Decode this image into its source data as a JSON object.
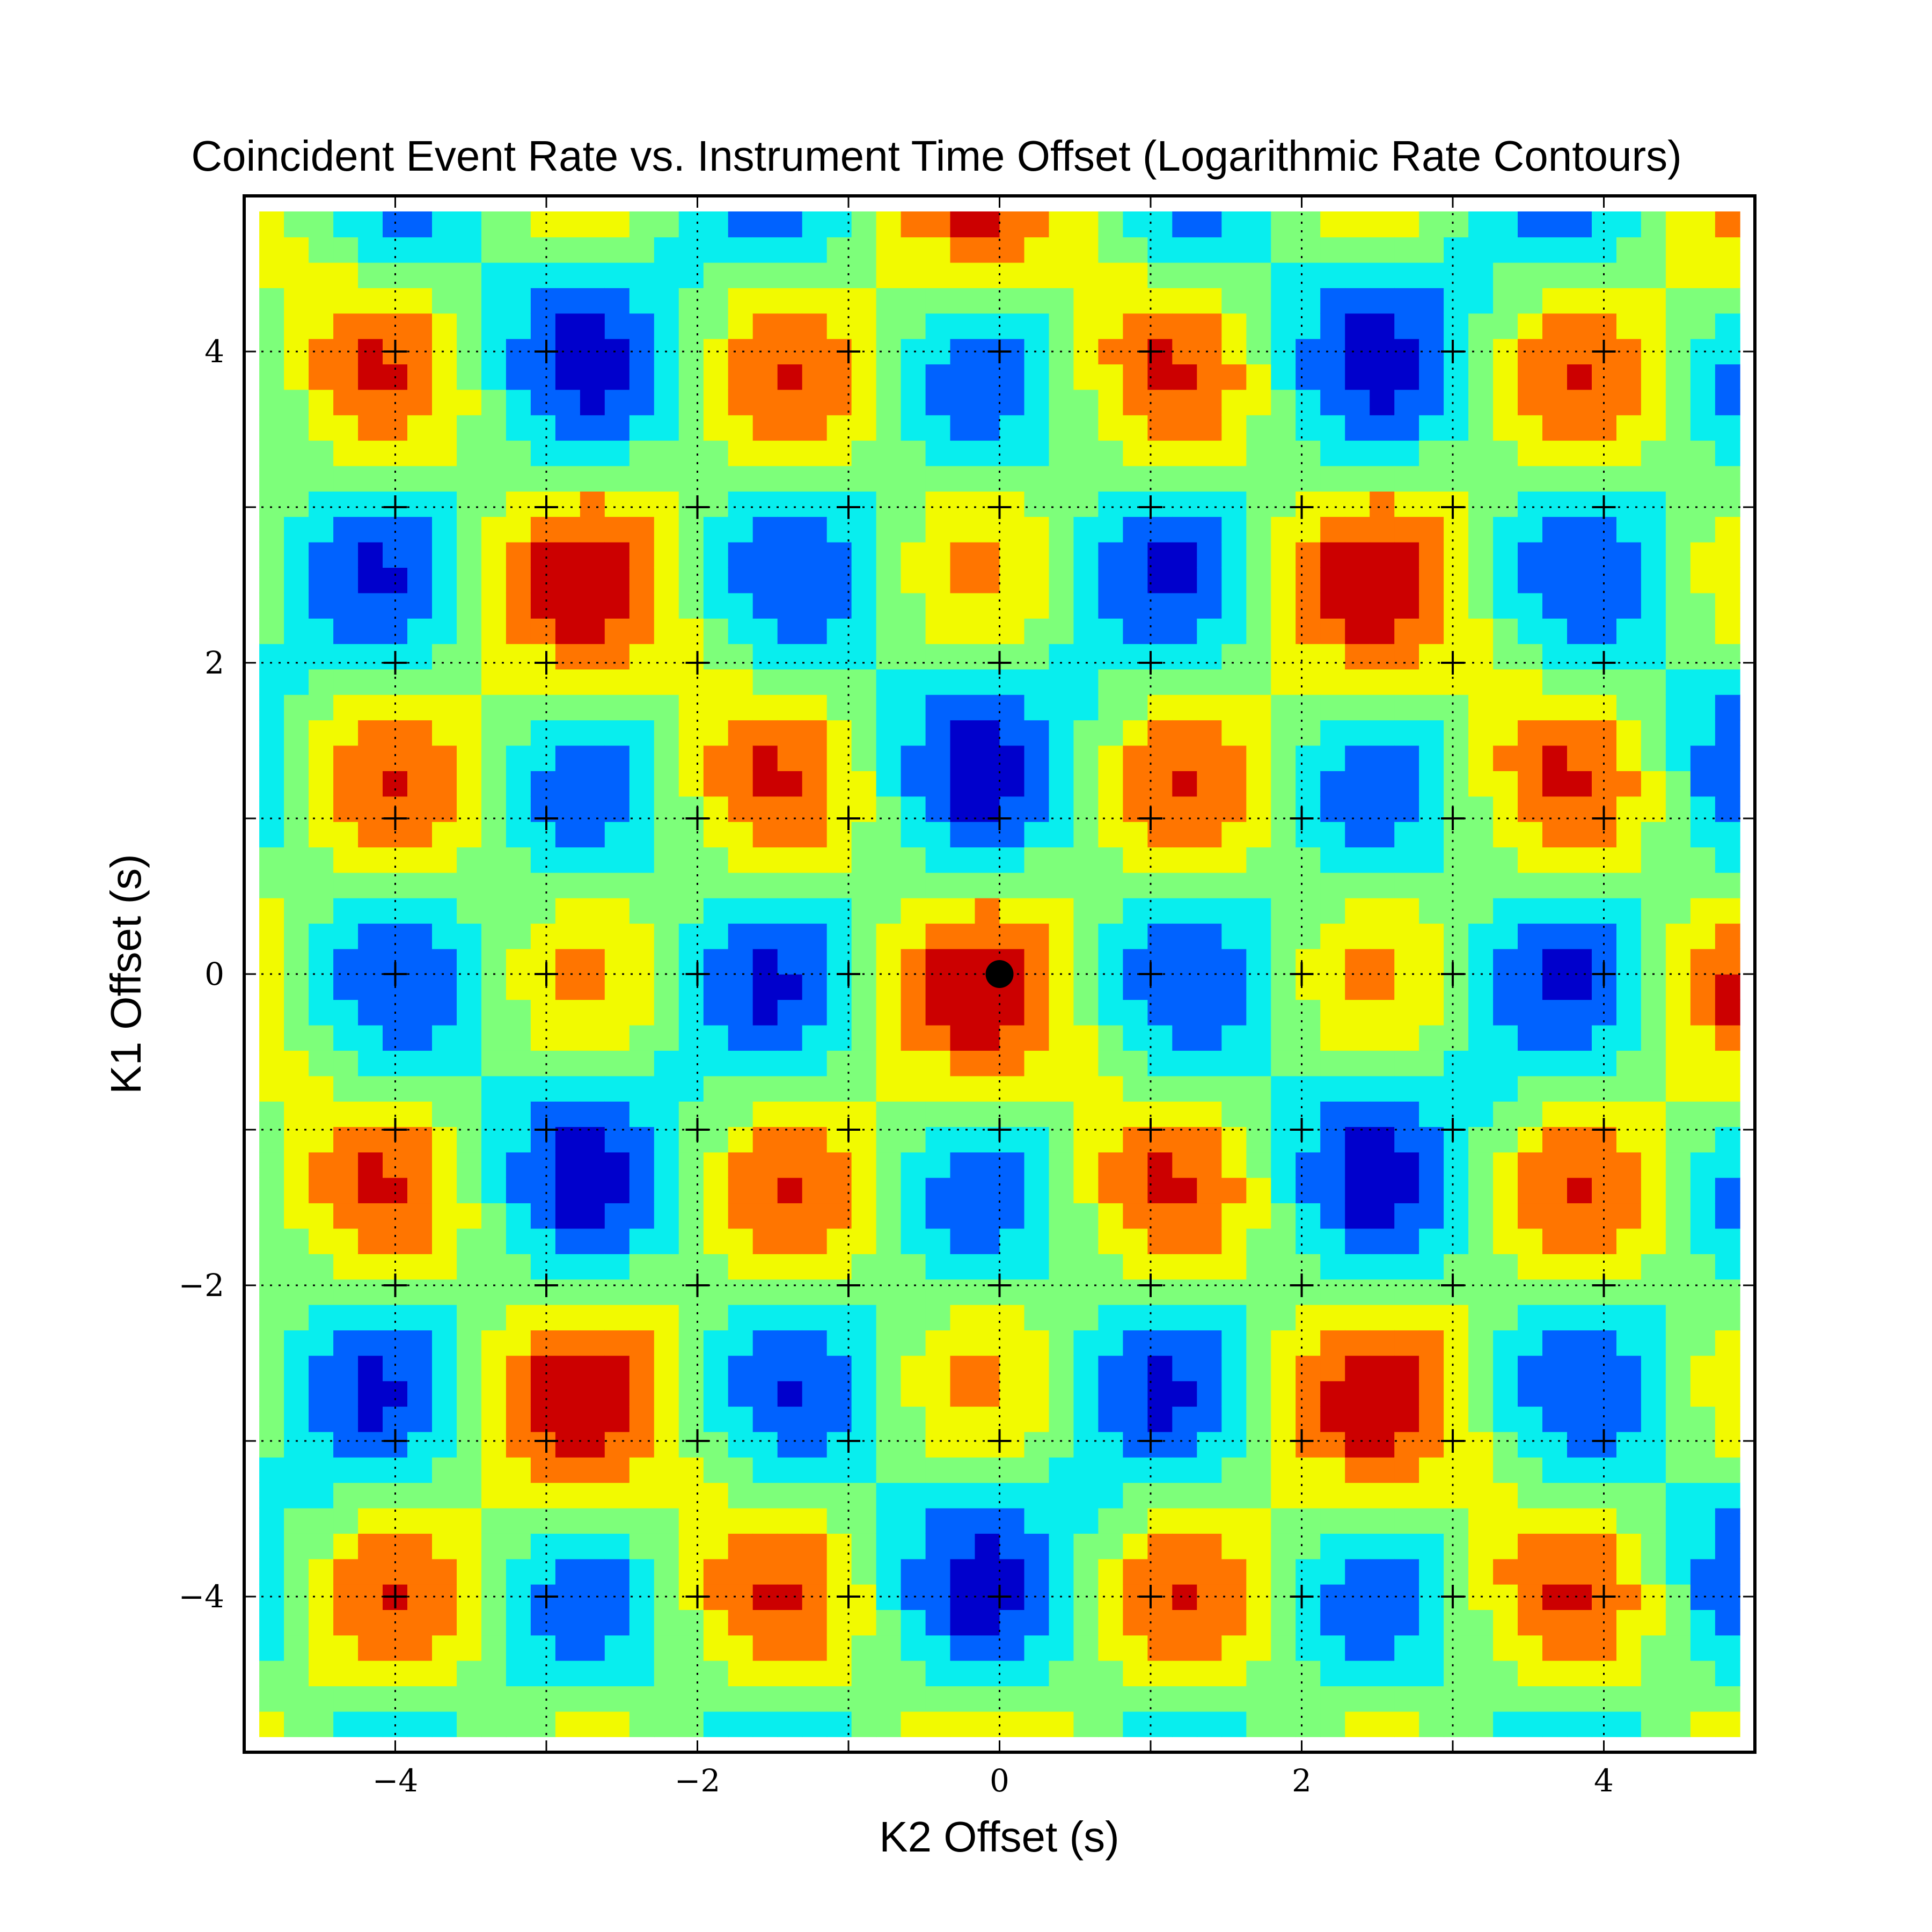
{
  "chart_data": {
    "type": "heatmap",
    "subtype": "filled-contour",
    "title": "Coincident Event Rate vs. Instrument Time Offset (Logarithmic Rate Contours)",
    "xlabel": "K2 Offset (s)",
    "ylabel": "K1 Offset (s)",
    "xlim": [
      -5,
      5
    ],
    "ylim": [
      -5,
      5
    ],
    "data_extent": [
      -4.9,
      4.9
    ],
    "x_ticks": [
      -4,
      -2,
      0,
      2,
      4
    ],
    "y_ticks": [
      -4,
      -2,
      0,
      2,
      4
    ],
    "x_tick_labels": [
      "−4",
      "−2",
      "0",
      "2",
      "4"
    ],
    "y_tick_labels": [
      "−4",
      "−2",
      "0",
      "2",
      "4"
    ],
    "grid": true,
    "grid_style": "dotted",
    "levels": [
      "#0000cc",
      "#0062ff",
      "#08eeee",
      "#7dff7a",
      "#f2fa00",
      "#ff7500",
      "#cc0000"
    ],
    "sample_grid": {
      "step": 0.5,
      "range": [
        -4.9,
        4.9
      ],
      "components": [
        {
          "fx": 2.4,
          "fy": 2.4,
          "ph_x": 0.3,
          "ph_y": 0.15,
          "amp": 1.0
        },
        {
          "fx": 1.2,
          "fy": 1.2,
          "ph_x": 0.0,
          "ph_y": 0.6,
          "amp": 0.35
        }
      ]
    },
    "marker_points": [
      {
        "x": -4,
        "y": 4
      },
      {
        "x": -3,
        "y": 4
      },
      {
        "x": -1,
        "y": 4
      },
      {
        "x": 0,
        "y": 4
      },
      {
        "x": 1,
        "y": 4
      },
      {
        "x": 3,
        "y": 4
      },
      {
        "x": 4,
        "y": 4
      },
      {
        "x": -4,
        "y": 3
      },
      {
        "x": -3,
        "y": 3
      },
      {
        "x": -2,
        "y": 3
      },
      {
        "x": -1,
        "y": 3
      },
      {
        "x": 0,
        "y": 3
      },
      {
        "x": 1,
        "y": 3
      },
      {
        "x": 2,
        "y": 3
      },
      {
        "x": 3,
        "y": 3
      },
      {
        "x": 4,
        "y": 3
      },
      {
        "x": -4,
        "y": 2
      },
      {
        "x": -3,
        "y": 2
      },
      {
        "x": -2,
        "y": 2
      },
      {
        "x": 0,
        "y": 2
      },
      {
        "x": 1,
        "y": 2
      },
      {
        "x": 3,
        "y": 2
      },
      {
        "x": 4,
        "y": 2
      },
      {
        "x": -4,
        "y": 1
      },
      {
        "x": -3,
        "y": 1
      },
      {
        "x": -2,
        "y": 1
      },
      {
        "x": -1,
        "y": 1
      },
      {
        "x": 0,
        "y": 1
      },
      {
        "x": 1,
        "y": 1
      },
      {
        "x": 2,
        "y": 1
      },
      {
        "x": 3,
        "y": 1
      },
      {
        "x": 4,
        "y": 1
      },
      {
        "x": -4,
        "y": 0
      },
      {
        "x": -3,
        "y": 0
      },
      {
        "x": -2,
        "y": 0
      },
      {
        "x": -1,
        "y": 0
      },
      {
        "x": 1,
        "y": 0
      },
      {
        "x": 2,
        "y": 0
      },
      {
        "x": 3,
        "y": 0
      },
      {
        "x": 4,
        "y": 0
      },
      {
        "x": -4,
        "y": -1
      },
      {
        "x": -3,
        "y": -1
      },
      {
        "x": -2,
        "y": -1
      },
      {
        "x": -1,
        "y": -1
      },
      {
        "x": 0,
        "y": -1
      },
      {
        "x": 1,
        "y": -1
      },
      {
        "x": 2,
        "y": -1
      },
      {
        "x": 3,
        "y": -1
      },
      {
        "x": 4,
        "y": -1
      },
      {
        "x": -4,
        "y": -2
      },
      {
        "x": -3,
        "y": -2
      },
      {
        "x": -2,
        "y": -2
      },
      {
        "x": -1,
        "y": -2
      },
      {
        "x": 0,
        "y": -2
      },
      {
        "x": 1,
        "y": -2
      },
      {
        "x": 2,
        "y": -2
      },
      {
        "x": 3,
        "y": -2
      },
      {
        "x": 4,
        "y": -2
      },
      {
        "x": -4,
        "y": -3
      },
      {
        "x": -3,
        "y": -3
      },
      {
        "x": -2,
        "y": -3
      },
      {
        "x": -1,
        "y": -3
      },
      {
        "x": 0,
        "y": -3
      },
      {
        "x": 1,
        "y": -3
      },
      {
        "x": 2,
        "y": -3
      },
      {
        "x": 3,
        "y": -3
      },
      {
        "x": 4,
        "y": -3
      },
      {
        "x": -4,
        "y": -4
      },
      {
        "x": -3,
        "y": -4
      },
      {
        "x": -2,
        "y": -4
      },
      {
        "x": -1,
        "y": -4
      },
      {
        "x": 0,
        "y": -4
      },
      {
        "x": 1,
        "y": -4
      },
      {
        "x": 2,
        "y": -4
      },
      {
        "x": 3,
        "y": -4
      },
      {
        "x": 4,
        "y": -4
      }
    ],
    "highlight_point": {
      "x": 0,
      "y": 0
    }
  }
}
